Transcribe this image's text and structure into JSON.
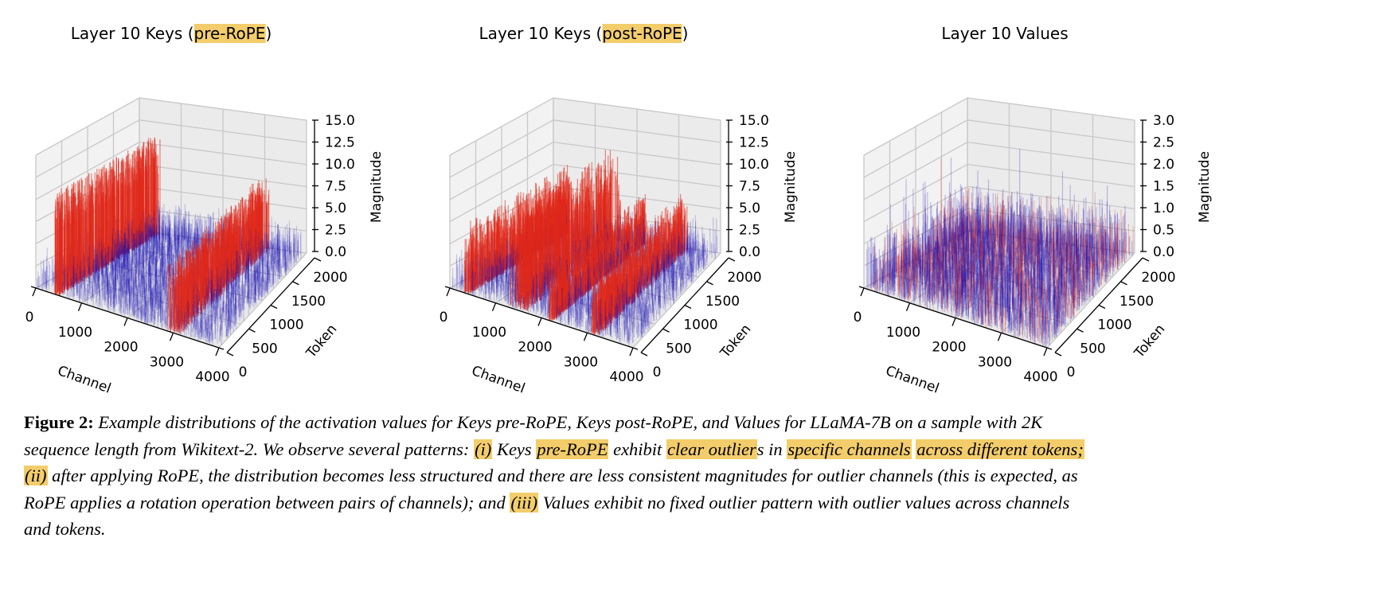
{
  "figure": {
    "label": "Figure 2:",
    "caption_lines": [
      [
        {
          "t": "Example distributions of the activation values for Keys pre-RoPE, Keys post-RoPE, and Values for LLaMA-7B on a sample with 2K",
          "hl": false
        }
      ],
      [
        {
          "t": "sequence length from Wikitext-2. We observe several patterns: ",
          "hl": false
        },
        {
          "t": "(i)",
          "hl": true
        },
        {
          "t": " Keys ",
          "hl": false
        },
        {
          "t": "pre-RoPE",
          "hl": true
        },
        {
          "t": " exhibit ",
          "hl": false
        },
        {
          "t": "clear outlier",
          "hl": true
        },
        {
          "t": "s in ",
          "hl": false
        },
        {
          "t": "specific channels",
          "hl": true
        },
        {
          "t": " ",
          "hl": false
        },
        {
          "t": "across different tokens;",
          "hl": true
        }
      ],
      [
        {
          "t": "(ii)",
          "hl": true
        },
        {
          "t": " after applying RoPE, the distribution becomes less structured and there are less consistent magnitudes for outlier channels (this is expected, as",
          "hl": false
        }
      ],
      [
        {
          "t": "RoPE applies a rotation operation between pairs of channels); and ",
          "hl": false
        },
        {
          "t": "(iii)",
          "hl": true
        },
        {
          "t": " Values exhibit no fixed outlier pattern with outlier values across channels",
          "hl": false
        }
      ],
      [
        {
          "t": "and tokens.",
          "hl": false
        }
      ]
    ]
  },
  "colors": {
    "highlight": "#f3cd6b",
    "outlier": "#e0281a",
    "normal": "#1a10b4",
    "pane": "#f2f2f2",
    "grid": "#c8c8c8"
  },
  "chart_data": [
    {
      "type": "bar3d",
      "title_parts": [
        {
          "t": "Layer 10 Keys (",
          "hl": false
        },
        {
          "t": "pre-RoPE",
          "hl": true
        },
        {
          "t": ")",
          "hl": false
        }
      ],
      "xlabel": "Channel",
      "ylabel": "Token",
      "zlabel": "Magnitude",
      "xticks": [
        "0",
        "1000",
        "2000",
        "3000",
        "4000"
      ],
      "yticks": [
        "0",
        "500",
        "1000",
        "1500",
        "2000"
      ],
      "zticks": [
        "0.0",
        "2.5",
        "5.0",
        "7.5",
        "10.0",
        "12.5",
        "15.0"
      ],
      "xlim": [
        0,
        4000
      ],
      "ylim": [
        0,
        2000
      ],
      "zlim": [
        0,
        15
      ],
      "baseline_magnitude": 4,
      "outlier_channels": [
        {
          "range": [
            380,
            520
          ],
          "magnitude": 11.5
        },
        {
          "range": [
            2850,
            3150
          ],
          "magnitude": 8
        }
      ]
    },
    {
      "type": "bar3d",
      "title_parts": [
        {
          "t": "Layer 10 Keys (",
          "hl": false
        },
        {
          "t": "post-RoPE",
          "hl": true
        },
        {
          "t": ")",
          "hl": false
        }
      ],
      "xlabel": "Channel",
      "ylabel": "Token",
      "zlabel": "Magnitude",
      "xticks": [
        "0",
        "1000",
        "2000",
        "3000",
        "4000"
      ],
      "yticks": [
        "0",
        "500",
        "1000",
        "1500",
        "2000"
      ],
      "zticks": [
        "0.0",
        "2.5",
        "5.0",
        "7.5",
        "10.0",
        "12.5",
        "15.0"
      ],
      "xlim": [
        0,
        4000
      ],
      "ylim": [
        0,
        2000
      ],
      "zlim": [
        0,
        15
      ],
      "baseline_magnitude": 4,
      "outlier_channels": [
        {
          "range": [
            300,
            420
          ],
          "magnitude": 8
        },
        {
          "range": [
            1250,
            1650
          ],
          "magnitude": 11
        },
        {
          "range": [
            2150,
            2250
          ],
          "magnitude": 6
        },
        {
          "range": [
            3050,
            3250
          ],
          "magnitude": 7
        }
      ]
    },
    {
      "type": "bar3d",
      "title_parts": [
        {
          "t": "Layer 10 Values",
          "hl": false
        }
      ],
      "xlabel": "Channel",
      "ylabel": "Token",
      "zlabel": "Magnitude",
      "xticks": [
        "0",
        "1000",
        "2000",
        "3000",
        "4000"
      ],
      "yticks": [
        "0",
        "500",
        "1000",
        "1500",
        "2000"
      ],
      "zticks": [
        "0.0",
        "0.5",
        "1.0",
        "1.5",
        "2.0",
        "2.5",
        "3.0"
      ],
      "xlim": [
        0,
        4000
      ],
      "ylim": [
        0,
        2000
      ],
      "zlim": [
        0,
        3
      ],
      "baseline_magnitude": 1.2,
      "outlier_channels": []
    }
  ]
}
